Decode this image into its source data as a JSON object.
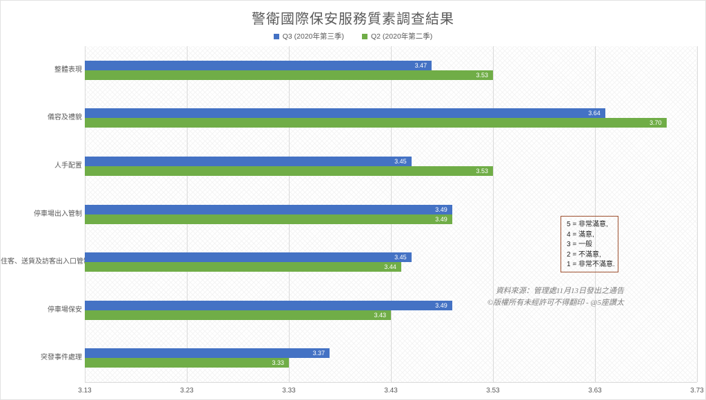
{
  "title": "警衛國際保安服務質素調查結果",
  "legend": [
    {
      "label": "Q3 (2020年第三季)",
      "color": "#4472c4"
    },
    {
      "label": "Q2 (2020年第二季)",
      "color": "#70ad47"
    }
  ],
  "chart_data": {
    "type": "bar",
    "orientation": "horizontal",
    "title": "警衛國際保安服務質素調查結果",
    "categories": [
      "整體表現",
      "儀容及禮貌",
      "人手配置",
      "停車場出入管制",
      "住客、送貨及訪客出入口管制",
      "停車場保安",
      "突發事件處理"
    ],
    "series": [
      {
        "name": "Q3 (2020年第三季)",
        "color": "#4472c4",
        "values": [
          3.47,
          3.64,
          3.45,
          3.49,
          3.45,
          3.49,
          3.37
        ]
      },
      {
        "name": "Q2 (2020年第二季)",
        "color": "#70ad47",
        "values": [
          3.53,
          3.7,
          3.53,
          3.49,
          3.44,
          3.43,
          3.33
        ]
      }
    ],
    "xlabel": "",
    "ylabel": "",
    "xlim": [
      3.13,
      3.73
    ],
    "x_ticks": [
      "3.13",
      "3.23",
      "3.33",
      "3.43",
      "3.53",
      "3.63",
      "3.73"
    ],
    "grid": true,
    "legend_position": "top",
    "value_labels": true
  },
  "scale_legend": {
    "lines": [
      "5 = 非常滿意,",
      "4 = 滿意,",
      "3 = 一般",
      "2 = 不滿意,",
      "1 = 非常不滿意."
    ]
  },
  "source_note": {
    "line1": "資料來源：管理處11月13日發出之通告",
    "line2": "©版權所有未經許可不得翻印 - @5座讚太"
  },
  "colors": {
    "q3_bar": "#4472c4",
    "q2_bar": "#70ad47",
    "gridline": "#d9d9d9",
    "title_text": "#595959",
    "scale_box_border": "#9c4e2d",
    "source_text": "#7f7f7f"
  }
}
